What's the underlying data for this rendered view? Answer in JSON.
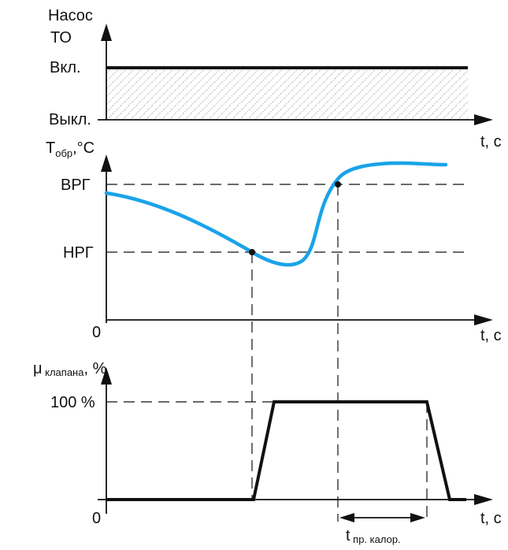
{
  "colors": {
    "curve": "#1aa3e8",
    "line": "#111111",
    "hatch": "#888888"
  },
  "top": {
    "ylabel_line1": "Насос",
    "ylabel_line2": "ТО",
    "on_label": "Вкл.",
    "off_label": "Выкл.",
    "xlabel": "t, с"
  },
  "middle": {
    "ylabel_main": "T",
    "ylabel_sub": "обр",
    "ylabel_unit": ",°С",
    "upper_label": "ВРГ",
    "lower_label": "НРГ",
    "origin": "0",
    "xlabel": "t, с"
  },
  "bottom": {
    "ylabel_main": "μ",
    "ylabel_sub": " клапана",
    "ylabel_unit": ", %",
    "level_label": "100 %",
    "origin": "0",
    "xlabel": "t, с",
    "interval_main": "t",
    "interval_sub": " пр. калор."
  }
}
